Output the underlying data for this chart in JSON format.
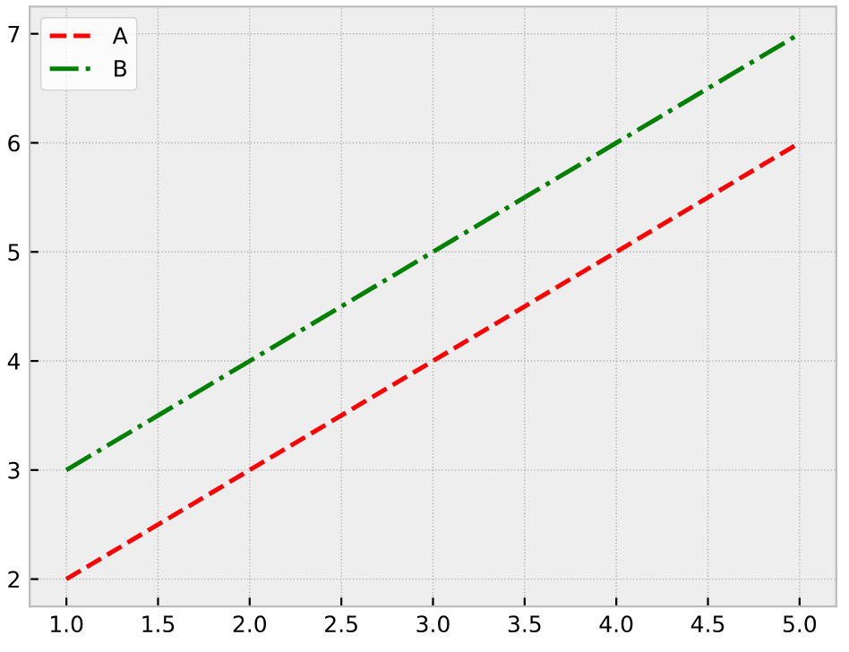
{
  "chart_data": {
    "type": "line",
    "x": [
      1,
      2,
      3,
      4,
      5
    ],
    "series": [
      {
        "name": "A",
        "color": "#ff0000",
        "line_style": "dashed",
        "values": [
          2,
          3,
          4,
          5,
          6
        ]
      },
      {
        "name": "B",
        "color": "#008000",
        "line_style": "dashdot",
        "values": [
          3,
          4,
          5,
          6,
          7
        ]
      }
    ],
    "xlim": [
      0.8,
      5.2
    ],
    "ylim": [
      1.75,
      7.25
    ],
    "xticks": [
      {
        "value": 1,
        "label": "1.0"
      },
      {
        "value": 1.5,
        "label": "1.5"
      },
      {
        "value": 2,
        "label": "2.0"
      },
      {
        "value": 2.5,
        "label": "2.5"
      },
      {
        "value": 3,
        "label": "3.0"
      },
      {
        "value": 3.5,
        "label": "3.5"
      },
      {
        "value": 4,
        "label": "4.0"
      },
      {
        "value": 4.5,
        "label": "4.5"
      },
      {
        "value": 5,
        "label": "5.0"
      }
    ],
    "yticks": [
      2,
      3,
      4,
      5,
      6,
      7
    ],
    "grid": true,
    "legend": "top left",
    "marker": "none"
  }
}
